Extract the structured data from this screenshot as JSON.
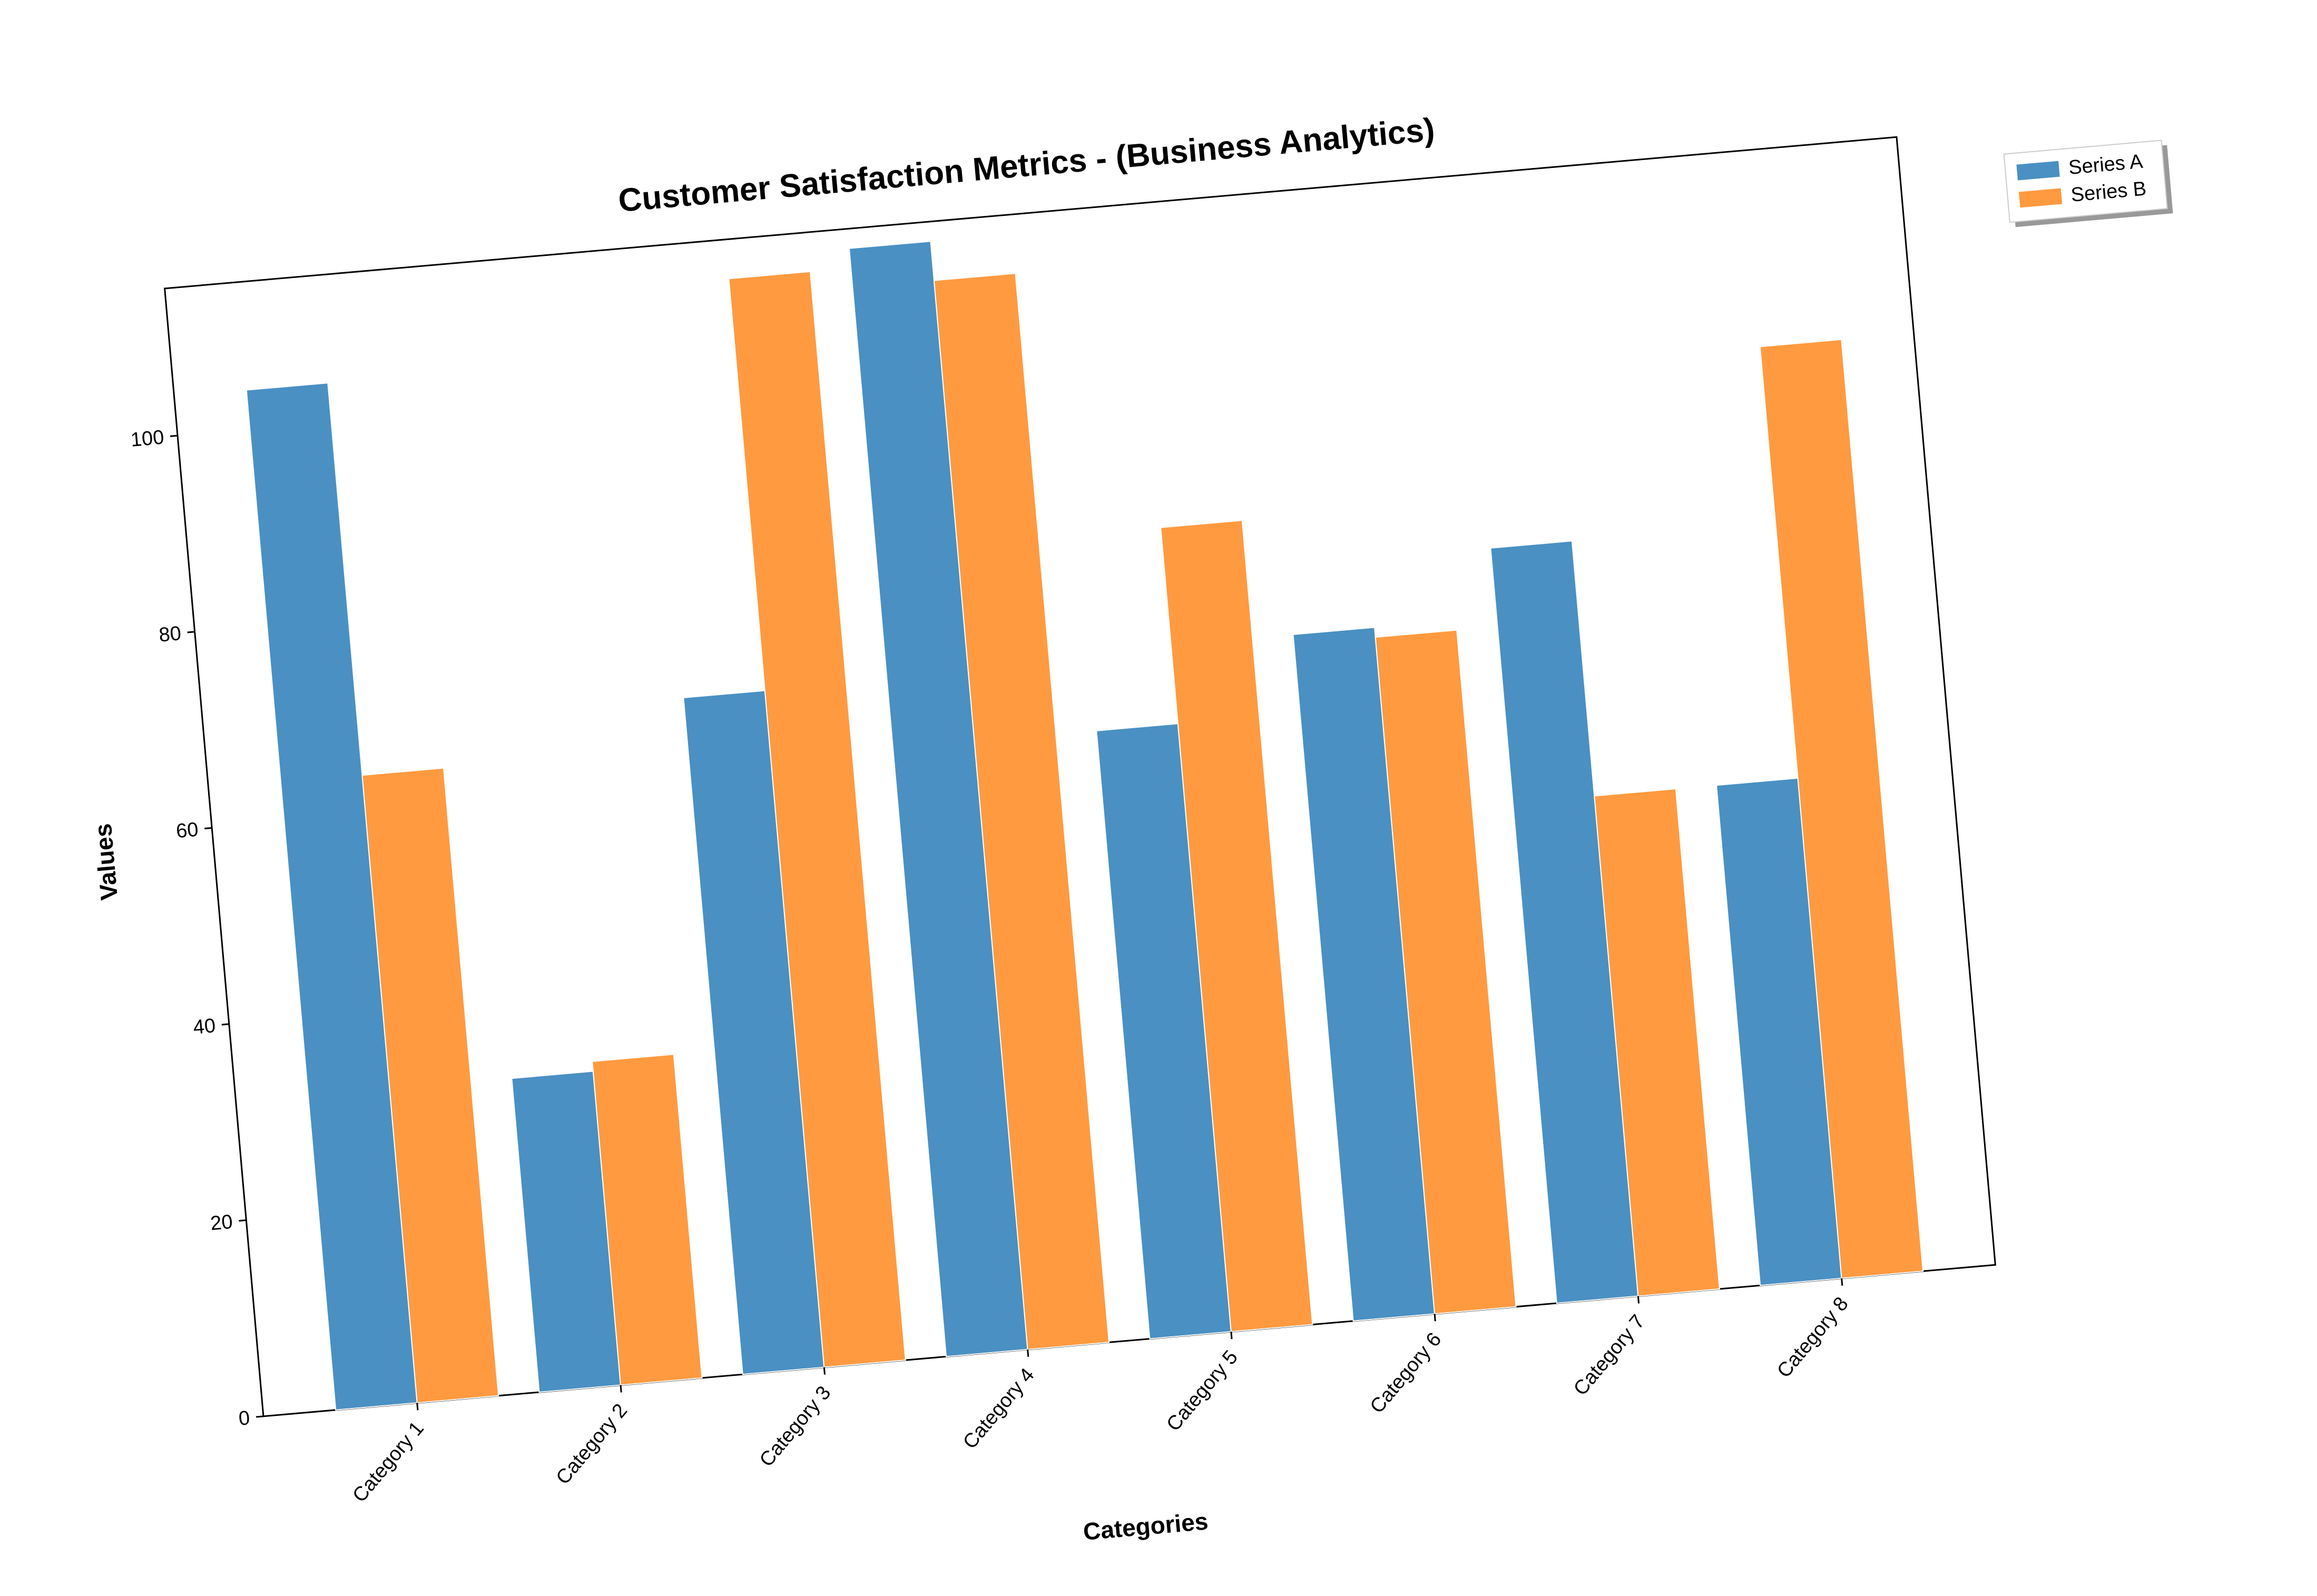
{
  "chart_data": {
    "type": "bar",
    "title": "Customer Satisfaction Metrics - (Business Analytics)",
    "xlabel": "Categories",
    "ylabel": "Values",
    "categories": [
      "Category 1",
      "Category 2",
      "Category 3",
      "Category 4",
      "Category 5",
      "Category 6",
      "Category 7",
      "Category 8"
    ],
    "series": [
      {
        "name": "Series A",
        "color": "#4a90c2",
        "values": [
          104,
          32,
          69,
          113,
          62,
          70,
          77,
          51
        ]
      },
      {
        "name": "Series B",
        "color": "#ff9a40",
        "values": [
          64,
          33,
          111,
          109,
          82,
          69,
          51,
          95
        ]
      }
    ],
    "ylim": [
      0,
      115
    ],
    "yticks": [
      0,
      20,
      40,
      60,
      80,
      100
    ],
    "grid": false,
    "legend": "top-right outside",
    "rotation_deg": -5
  }
}
